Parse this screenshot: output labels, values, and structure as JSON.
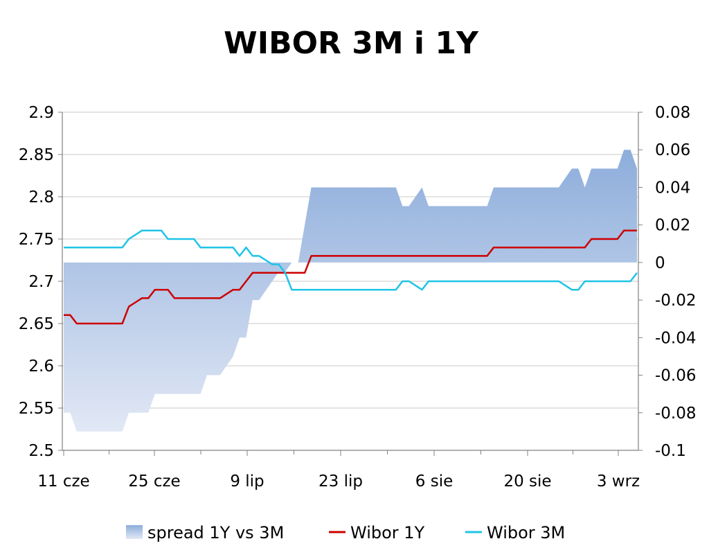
{
  "chart_data": {
    "type": "line",
    "title": "WIBOR 3M i 1Y",
    "x_tick_labels": [
      "11 cze",
      "25 cze",
      "9 lip",
      "23 lip",
      "6 sie",
      "20 sie",
      "3 wrz"
    ],
    "y_left": {
      "ylim": [
        2.5,
        2.9
      ],
      "ticks": [
        2.5,
        2.55,
        2.6,
        2.65,
        2.7,
        2.75,
        2.8,
        2.85,
        2.9
      ]
    },
    "y_right": {
      "ylim": [
        -0.1,
        0.08
      ],
      "ticks": [
        -0.1,
        -0.08,
        -0.06,
        -0.04,
        -0.02,
        0,
        0.02,
        0.04,
        0.06,
        0.08
      ]
    },
    "grid": true,
    "legend": "bottom",
    "colors": {
      "spread_top": "#8DADDB",
      "spread_bottom": "#E2E8F5",
      "wibor_1y": "#CC0000",
      "wibor_3m": "#1EC4E6",
      "grid": "#C8C8C8",
      "axis": "#808080"
    },
    "series": [
      {
        "name": "spread 1Y vs 3M",
        "kind": "area",
        "axis": "right",
        "values": [
          -0.08,
          -0.08,
          -0.09,
          -0.09,
          -0.09,
          -0.09,
          -0.09,
          -0.09,
          -0.09,
          -0.09,
          -0.08,
          -0.08,
          -0.08,
          -0.08,
          -0.07,
          -0.07,
          -0.07,
          -0.07,
          -0.07,
          -0.07,
          -0.07,
          -0.07,
          -0.06,
          -0.06,
          -0.06,
          -0.055,
          -0.05,
          -0.04,
          -0.04,
          -0.02,
          -0.02,
          -0.015,
          -0.01,
          -0.005,
          -0.005,
          0.0,
          0.0,
          0.02,
          0.04,
          0.04,
          0.04,
          0.04,
          0.04,
          0.04,
          0.04,
          0.04,
          0.04,
          0.04,
          0.04,
          0.04,
          0.04,
          0.04,
          0.03,
          0.03,
          0.035,
          0.04,
          0.03,
          0.03,
          0.03,
          0.03,
          0.03,
          0.03,
          0.03,
          0.03,
          0.03,
          0.03,
          0.04,
          0.04,
          0.04,
          0.04,
          0.04,
          0.04,
          0.04,
          0.04,
          0.04,
          0.04,
          0.04,
          0.045,
          0.05,
          0.05,
          0.04,
          0.05,
          0.05,
          0.05,
          0.05,
          0.05,
          0.06,
          0.06,
          0.05
        ]
      },
      {
        "name": "Wibor 1Y",
        "kind": "line",
        "axis": "left",
        "values": [
          2.66,
          2.66,
          2.65,
          2.65,
          2.65,
          2.65,
          2.65,
          2.65,
          2.65,
          2.65,
          2.67,
          2.675,
          2.68,
          2.68,
          2.69,
          2.69,
          2.69,
          2.68,
          2.68,
          2.68,
          2.68,
          2.68,
          2.68,
          2.68,
          2.68,
          2.685,
          2.69,
          2.69,
          2.7,
          2.71,
          2.71,
          2.71,
          2.71,
          2.71,
          2.71,
          2.71,
          2.71,
          2.71,
          2.73,
          2.73,
          2.73,
          2.73,
          2.73,
          2.73,
          2.73,
          2.73,
          2.73,
          2.73,
          2.73,
          2.73,
          2.73,
          2.73,
          2.73,
          2.73,
          2.73,
          2.73,
          2.73,
          2.73,
          2.73,
          2.73,
          2.73,
          2.73,
          2.73,
          2.73,
          2.73,
          2.73,
          2.74,
          2.74,
          2.74,
          2.74,
          2.74,
          2.74,
          2.74,
          2.74,
          2.74,
          2.74,
          2.74,
          2.74,
          2.74,
          2.74,
          2.74,
          2.75,
          2.75,
          2.75,
          2.75,
          2.75,
          2.76,
          2.76,
          2.76
        ]
      },
      {
        "name": "Wibor 3M",
        "kind": "line",
        "axis": "left",
        "values": [
          2.74,
          2.74,
          2.74,
          2.74,
          2.74,
          2.74,
          2.74,
          2.74,
          2.74,
          2.74,
          2.75,
          2.755,
          2.76,
          2.76,
          2.76,
          2.76,
          2.75,
          2.75,
          2.75,
          2.75,
          2.75,
          2.74,
          2.74,
          2.74,
          2.74,
          2.74,
          2.74,
          2.73,
          2.74,
          2.73,
          2.73,
          2.725,
          2.72,
          2.72,
          2.71,
          2.69,
          2.69,
          2.69,
          2.69,
          2.69,
          2.69,
          2.69,
          2.69,
          2.69,
          2.69,
          2.69,
          2.69,
          2.69,
          2.69,
          2.69,
          2.69,
          2.69,
          2.7,
          2.7,
          2.695,
          2.69,
          2.7,
          2.7,
          2.7,
          2.7,
          2.7,
          2.7,
          2.7,
          2.7,
          2.7,
          2.7,
          2.7,
          2.7,
          2.7,
          2.7,
          2.7,
          2.7,
          2.7,
          2.7,
          2.7,
          2.7,
          2.7,
          2.695,
          2.69,
          2.69,
          2.7,
          2.7,
          2.7,
          2.7,
          2.7,
          2.7,
          2.7,
          2.7,
          2.71
        ]
      }
    ]
  }
}
